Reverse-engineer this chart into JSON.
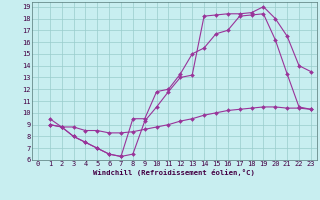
{
  "xlabel": "Windchill (Refroidissement éolien,°C)",
  "bg_color": "#c8eef0",
  "grid_color": "#99cccc",
  "line_color": "#993399",
  "xlim": [
    -0.5,
    23.5
  ],
  "ylim": [
    6,
    19.4
  ],
  "xticks": [
    0,
    1,
    2,
    3,
    4,
    5,
    6,
    7,
    8,
    9,
    10,
    11,
    12,
    13,
    14,
    15,
    16,
    17,
    18,
    19,
    20,
    21,
    22,
    23
  ],
  "yticks": [
    6,
    7,
    8,
    9,
    10,
    11,
    12,
    13,
    14,
    15,
    16,
    17,
    18,
    19
  ],
  "line1_x": [
    1,
    2,
    3,
    4,
    5,
    6,
    7,
    8,
    9,
    10,
    11,
    12,
    13,
    14,
    15,
    16,
    17,
    18,
    19,
    20,
    21,
    22,
    23
  ],
  "line1_y": [
    9.0,
    8.8,
    8.0,
    7.5,
    7.0,
    6.5,
    6.3,
    9.5,
    9.5,
    11.8,
    12.0,
    13.3,
    15.0,
    15.5,
    16.7,
    17.0,
    18.2,
    18.3,
    18.4,
    16.2,
    13.3,
    10.5,
    10.3
  ],
  "line2_x": [
    1,
    2,
    3,
    4,
    5,
    6,
    7,
    8,
    9,
    10,
    11,
    12,
    13,
    14,
    15,
    16,
    17,
    18,
    19,
    20,
    21,
    22,
    23
  ],
  "line2_y": [
    9.5,
    8.8,
    8.8,
    8.5,
    8.5,
    8.3,
    8.3,
    8.4,
    8.6,
    8.8,
    9.0,
    9.3,
    9.5,
    9.8,
    10.0,
    10.2,
    10.3,
    10.4,
    10.5,
    10.5,
    10.4,
    10.4,
    10.3
  ],
  "line3_x": [
    1,
    2,
    3,
    4,
    5,
    6,
    7,
    8,
    9,
    10,
    11,
    12,
    13,
    14,
    15,
    16,
    17,
    18,
    19,
    20,
    21,
    22,
    23
  ],
  "line3_y": [
    9.0,
    8.8,
    8.0,
    7.5,
    7.0,
    6.5,
    6.3,
    6.5,
    9.3,
    10.5,
    11.8,
    13.0,
    13.2,
    18.2,
    18.3,
    18.4,
    18.4,
    18.5,
    19.0,
    18.0,
    16.5,
    14.0,
    13.5
  ]
}
